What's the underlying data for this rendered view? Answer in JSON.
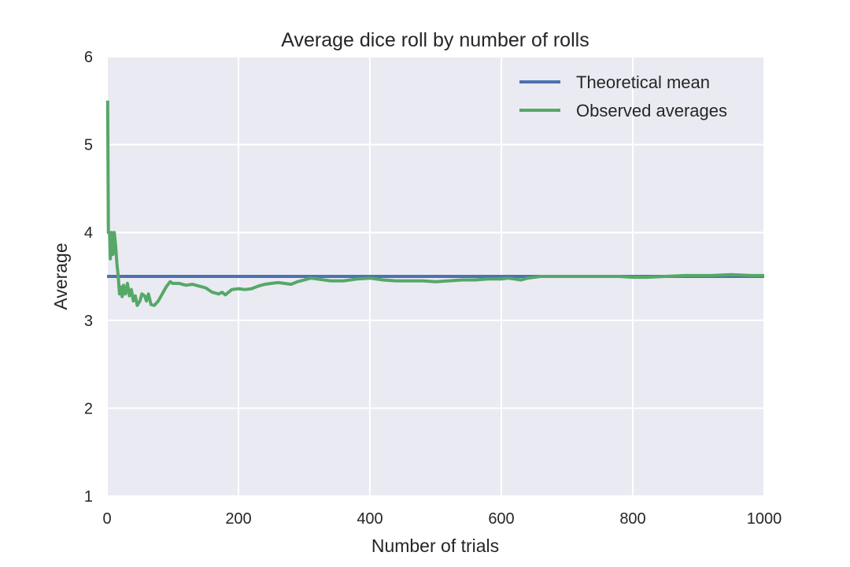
{
  "chart_data": {
    "type": "line",
    "title": "Average dice roll by number of rolls",
    "xlabel": "Number of trials",
    "ylabel": "Average",
    "xlim": [
      0,
      1000
    ],
    "ylim": [
      1,
      6
    ],
    "xticks": [
      "0",
      "200",
      "400",
      "600",
      "800",
      "1000"
    ],
    "yticks": [
      "1",
      "2",
      "3",
      "4",
      "5",
      "6"
    ],
    "grid": true,
    "legend_position": "top-right",
    "colors": {
      "background": "#EAEAF2",
      "theoretical": "#4C72B0",
      "observed": "#55A868"
    },
    "series": [
      {
        "name": "Theoretical mean",
        "x": [
          0,
          1000
        ],
        "y": [
          3.5,
          3.5
        ]
      },
      {
        "name": "Observed averages",
        "x": [
          1,
          2,
          4,
          5,
          7,
          9,
          11,
          13,
          15,
          17,
          19,
          21,
          23,
          25,
          28,
          31,
          34,
          37,
          40,
          43,
          46,
          50,
          53,
          57,
          60,
          63,
          67,
          72,
          78,
          84,
          90,
          96,
          100,
          110,
          120,
          130,
          140,
          150,
          160,
          170,
          175,
          180,
          190,
          200,
          210,
          220,
          230,
          240,
          250,
          260,
          270,
          280,
          290,
          300,
          310,
          320,
          340,
          360,
          380,
          400,
          420,
          440,
          460,
          480,
          500,
          520,
          540,
          560,
          580,
          600,
          610,
          620,
          630,
          640,
          660,
          680,
          700,
          740,
          780,
          800,
          820,
          850,
          880,
          920,
          950,
          980,
          1000
        ],
        "y": [
          5.5,
          4.0,
          4.0,
          3.7,
          4.0,
          3.75,
          4.0,
          3.85,
          3.65,
          3.5,
          3.3,
          3.38,
          3.27,
          3.4,
          3.3,
          3.42,
          3.28,
          3.35,
          3.22,
          3.28,
          3.17,
          3.22,
          3.3,
          3.28,
          3.22,
          3.3,
          3.18,
          3.17,
          3.22,
          3.3,
          3.38,
          3.44,
          3.42,
          3.42,
          3.4,
          3.41,
          3.39,
          3.37,
          3.32,
          3.3,
          3.32,
          3.29,
          3.35,
          3.36,
          3.35,
          3.36,
          3.39,
          3.41,
          3.42,
          3.43,
          3.42,
          3.41,
          3.44,
          3.46,
          3.48,
          3.47,
          3.45,
          3.45,
          3.47,
          3.48,
          3.46,
          3.45,
          3.45,
          3.45,
          3.44,
          3.45,
          3.46,
          3.46,
          3.47,
          3.47,
          3.48,
          3.47,
          3.46,
          3.48,
          3.5,
          3.5,
          3.5,
          3.5,
          3.5,
          3.49,
          3.49,
          3.5,
          3.51,
          3.51,
          3.52,
          3.51,
          3.51
        ]
      }
    ]
  }
}
